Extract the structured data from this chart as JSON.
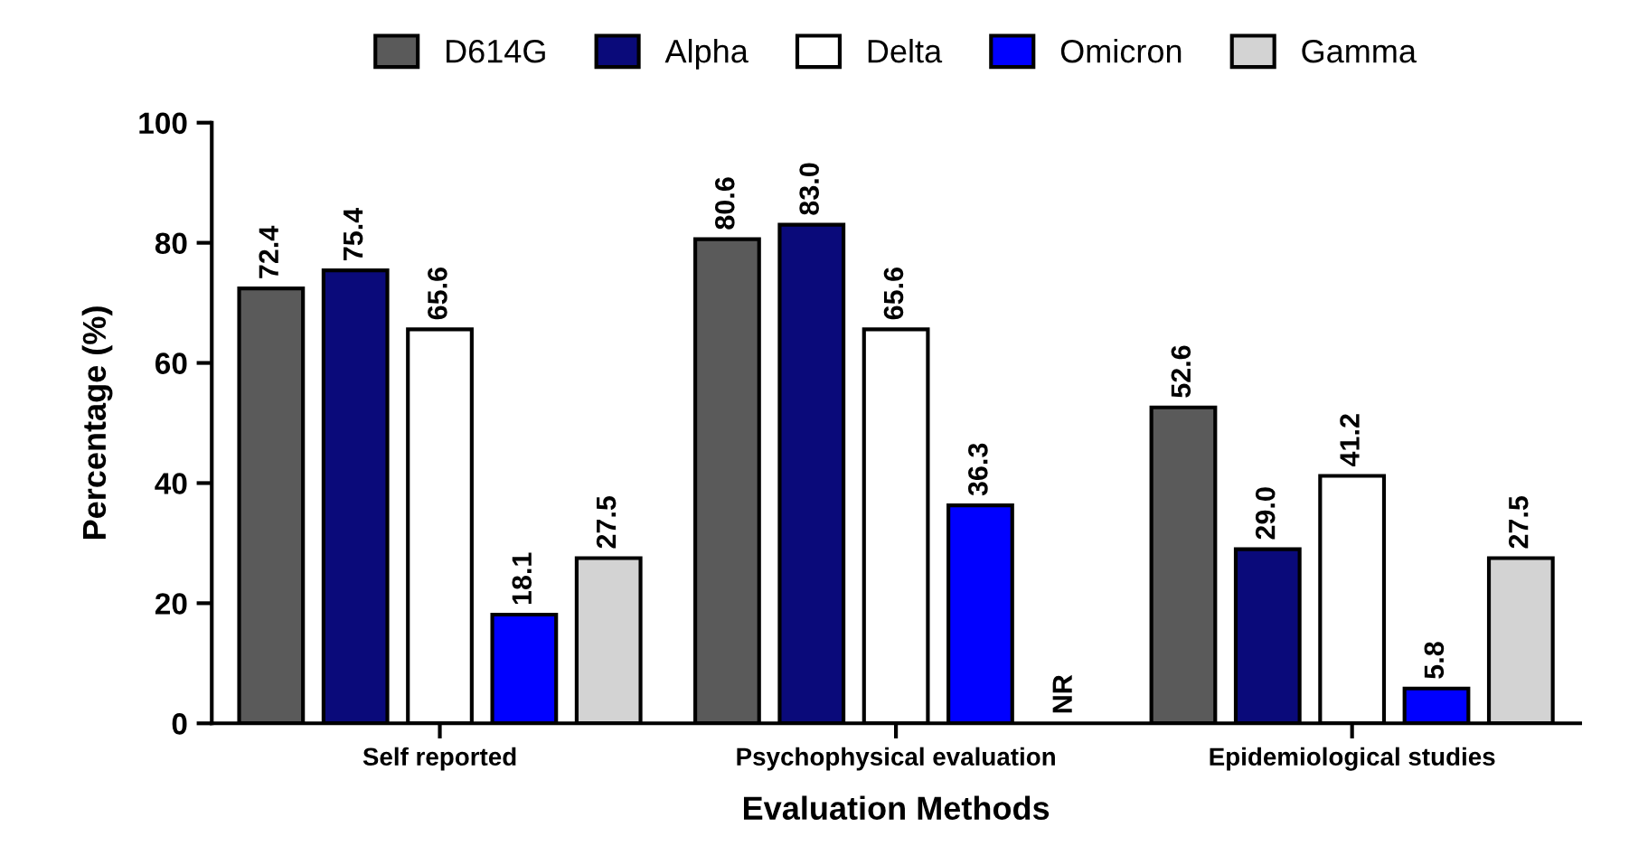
{
  "chart_data": {
    "type": "bar",
    "xlabel": "Evaluation Methods",
    "ylabel": "Percentage (%)",
    "categories": [
      "Self reported",
      "Psychophysical evaluation",
      "Epidemiological studies"
    ],
    "series": [
      {
        "name": "D614G",
        "color": "#5a5a5a",
        "values": [
          72.4,
          80.6,
          52.6
        ],
        "value_labels": [
          "72.4",
          "80.6",
          "52.6"
        ]
      },
      {
        "name": "Alpha",
        "color": "#0a0a7a",
        "values": [
          75.4,
          83.0,
          29.0
        ],
        "value_labels": [
          "75.4",
          "83.0",
          "29.0"
        ]
      },
      {
        "name": "Delta",
        "color": "#ffffff",
        "values": [
          65.6,
          65.6,
          41.2
        ],
        "value_labels": [
          "65.6",
          "65.6",
          "41.2"
        ]
      },
      {
        "name": "Omicron",
        "color": "#0000ff",
        "values": [
          18.1,
          36.3,
          5.8
        ],
        "value_labels": [
          "18.1",
          "36.3",
          "5.8"
        ]
      },
      {
        "name": "Gamma",
        "color": "#d3d3d3",
        "values": [
          27.5,
          null,
          27.5
        ],
        "value_labels": [
          "27.5",
          "NR",
          "27.5"
        ]
      }
    ],
    "ylim": [
      0,
      100
    ],
    "yticks": [
      0,
      20,
      40,
      60,
      80,
      100
    ],
    "grid": false,
    "legend": "top"
  }
}
